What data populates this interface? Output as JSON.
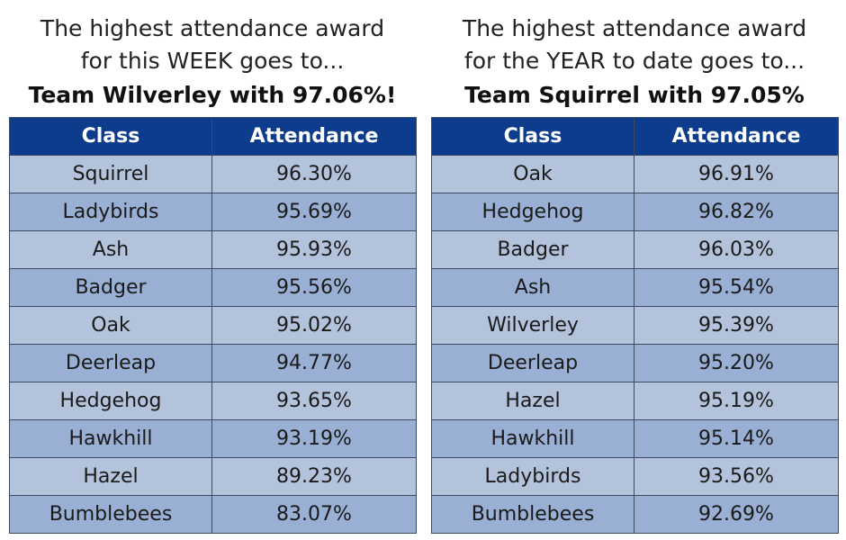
{
  "weekly": {
    "line1": "The highest attendance award",
    "line2": "for this WEEK goes to...",
    "winner": "Team Wilverley with 97.06%!",
    "headers": {
      "class": "Class",
      "attendance": "Attendance"
    },
    "rows": [
      {
        "class": "Squirrel",
        "attendance": "96.30%"
      },
      {
        "class": "Ladybirds",
        "attendance": "95.69%"
      },
      {
        "class": "Ash",
        "attendance": "95.93%"
      },
      {
        "class": "Badger",
        "attendance": "95.56%"
      },
      {
        "class": "Oak",
        "attendance": "95.02%"
      },
      {
        "class": "Deerleap",
        "attendance": "94.77%"
      },
      {
        "class": "Hedgehog",
        "attendance": "93.65%"
      },
      {
        "class": "Hawkhill",
        "attendance": "93.19%"
      },
      {
        "class": "Hazel",
        "attendance": "89.23%"
      },
      {
        "class": "Bumblebees",
        "attendance": "83.07%"
      }
    ]
  },
  "yearly": {
    "line1": "The highest attendance award",
    "line2": "for the YEAR to date goes to...",
    "winner": "Team Squirrel with 97.05%",
    "headers": {
      "class": "Class",
      "attendance": "Attendance"
    },
    "rows": [
      {
        "class": "Oak",
        "attendance": "96.91%"
      },
      {
        "class": "Hedgehog",
        "attendance": "96.82%"
      },
      {
        "class": "Badger",
        "attendance": "96.03%"
      },
      {
        "class": "Ash",
        "attendance": "95.54%"
      },
      {
        "class": "Wilverley",
        "attendance": "95.39%"
      },
      {
        "class": "Deerleap",
        "attendance": "95.20%"
      },
      {
        "class": "Hazel",
        "attendance": "95.19%"
      },
      {
        "class": "Hawkhill",
        "attendance": "95.14%"
      },
      {
        "class": "Ladybirds",
        "attendance": "93.56%"
      },
      {
        "class": "Bumblebees",
        "attendance": "92.69%"
      }
    ]
  },
  "colors": {
    "header_bg": "#0e3c8c",
    "row_light": "#b4c3dc",
    "row_dark": "#99afd4",
    "border": "#3c4a63"
  }
}
